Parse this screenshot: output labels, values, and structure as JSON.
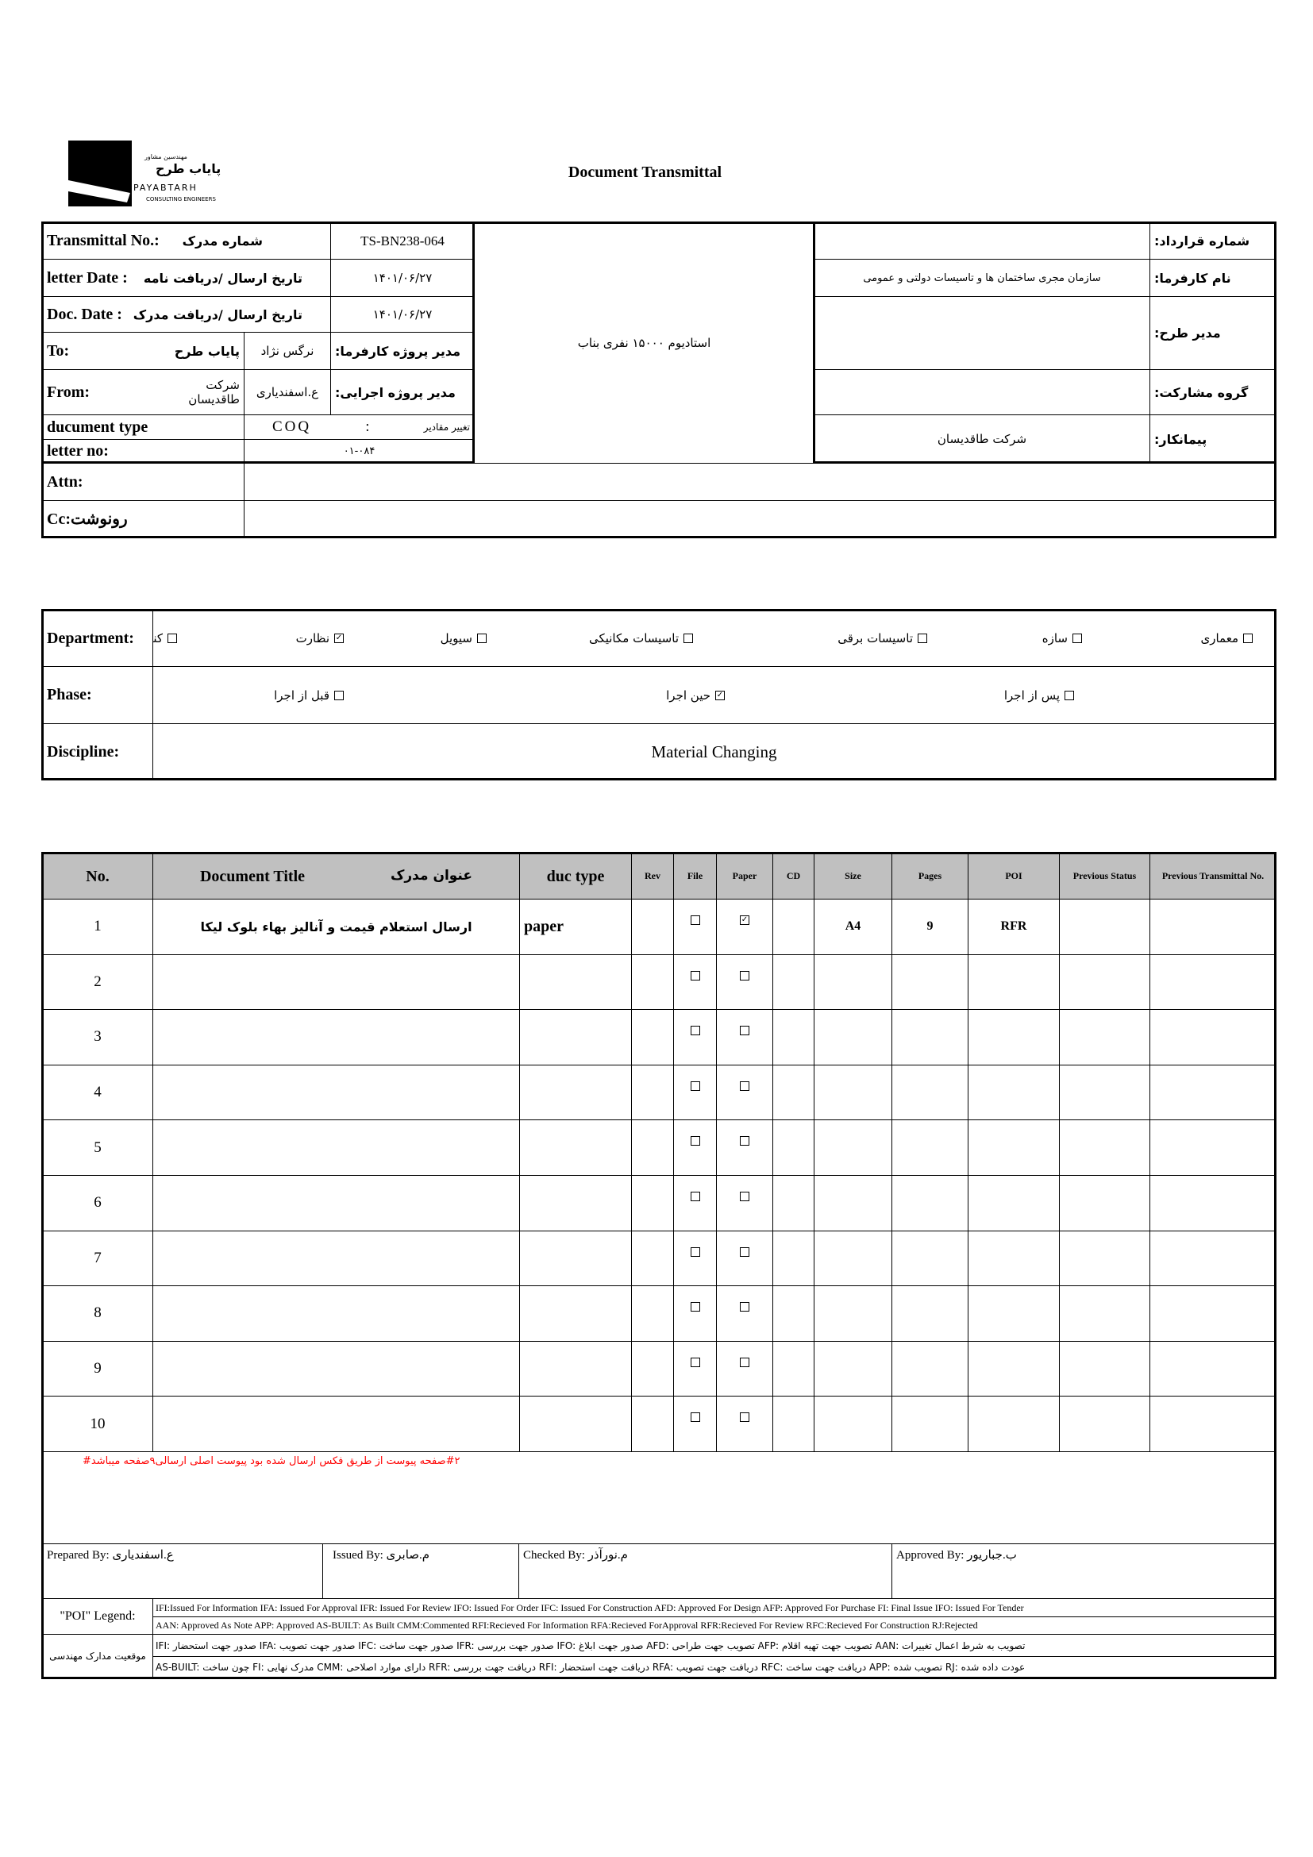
{
  "logo": {
    "company_fa_small": "مهندسین مشاور",
    "company_fa": "پایاب طرح",
    "company_en": "PAYABTARH",
    "subtitle": "CONSULTING ENGINEERS"
  },
  "title": "Document Transmittal",
  "header": {
    "transmittal_label": "Transmittal No.:",
    "transmittal_label_fa": "شماره مدرک",
    "transmittal_no": "TS-BN238-064",
    "letter_date_label": "letter Date  :",
    "letter_date_label_fa": "تاریخ ارسال /دریافت نامه",
    "letter_date": "۱۴۰۱/۰۶/۲۷",
    "doc_date_label": "Doc. Date :",
    "doc_date_label_fa": "تاریخ ارسال /دریافت مدرک",
    "doc_date": "۱۴۰۱/۰۶/۲۷",
    "to_label": "To:",
    "to_value": "پایاب طرح",
    "to_person": "نرگس نژاد",
    "to_role": "مدیر پروژه کارفرما:",
    "from_label": "From:",
    "from_value": "شرکت طاقدیسان",
    "from_person": "ع.اسفندیاری",
    "from_role": "مدیر پروژه اجرایی:",
    "doc_type_label": "ducument type",
    "doc_type_code": "COQ",
    "doc_type_colon": ":",
    "doc_type_fa": "تغییر مقادیر",
    "letter_no_label": "letter no:",
    "letter_no": "۰۱-۰۸۴",
    "project": "استادیوم ۱۵۰۰۰ نفری بناب",
    "contract_label": "شماره قرارداد:",
    "contract_value": "",
    "employer_label": "نام کارفرما:",
    "employer_value": "سازمان مجری ساختمان ها و تاسیسات دولتی و عمومی",
    "plan_manager_label": "مدیر طرح:",
    "plan_manager_value": "",
    "partner_label": "گروه مشارکت:",
    "partner_value": "",
    "contractor_label": "پیمانکار:",
    "contractor_value": "شرکت طاقدیسان",
    "attn_label": "Attn:",
    "attn_value": "",
    "cc_label": "Cc:رونوشت",
    "cc_value": ""
  },
  "department": {
    "label": "Department:",
    "options": [
      {
        "label": "کنترل پروژه",
        "checked": false
      },
      {
        "label": "نظارت",
        "checked": true
      },
      {
        "label": "سیویل",
        "checked": false
      },
      {
        "label": "تاسیسات مکانیکی",
        "checked": false
      },
      {
        "label": "تاسیسات برقی",
        "checked": false
      },
      {
        "label": "سازه",
        "checked": false
      },
      {
        "label": "معماری",
        "checked": false
      }
    ]
  },
  "phase": {
    "label": "Phase:",
    "options": [
      {
        "label": "قبل از اجرا",
        "checked": false
      },
      {
        "label": "حین اجرا",
        "checked": true
      },
      {
        "label": "پس از اجرا",
        "checked": false
      }
    ]
  },
  "discipline": {
    "label": "Discipline:",
    "value": "Material Changing"
  },
  "table": {
    "headers": {
      "no": "No.",
      "title": "Document Title",
      "title_fa": "عنوان مدرک",
      "duc_type": "duc type",
      "rev": "Rev",
      "file": "File",
      "paper": "Paper",
      "cd": "CD",
      "size": "Size",
      "pages": "Pages",
      "poi": "POI",
      "prev_status": "Previous Status",
      "prev_transmittal": "Previous Transmittal No."
    },
    "rows": [
      {
        "no": "1",
        "title": "ارسال استعلام قیمت و آنالیز بهاء بلوک لیکا",
        "duc_type": "paper",
        "rev": "",
        "file": false,
        "paper": true,
        "cd": "",
        "size": "A4",
        "pages": "9",
        "poi": "RFR",
        "prev_status": "",
        "prev_transmittal": ""
      },
      {
        "no": "2",
        "title": "",
        "duc_type": "",
        "rev": "",
        "file": false,
        "paper": false,
        "cd": "",
        "size": "",
        "pages": "",
        "poi": "",
        "prev_status": "",
        "prev_transmittal": ""
      },
      {
        "no": "3",
        "title": "",
        "duc_type": "",
        "rev": "",
        "file": false,
        "paper": false,
        "cd": "",
        "size": "",
        "pages": "",
        "poi": "",
        "prev_status": "",
        "prev_transmittal": ""
      },
      {
        "no": "4",
        "title": "",
        "duc_type": "",
        "rev": "",
        "file": false,
        "paper": false,
        "cd": "",
        "size": "",
        "pages": "",
        "poi": "",
        "prev_status": "",
        "prev_transmittal": ""
      },
      {
        "no": "5",
        "title": "",
        "duc_type": "",
        "rev": "",
        "file": false,
        "paper": false,
        "cd": "",
        "size": "",
        "pages": "",
        "poi": "",
        "prev_status": "",
        "prev_transmittal": ""
      },
      {
        "no": "6",
        "title": "",
        "duc_type": "",
        "rev": "",
        "file": false,
        "paper": false,
        "cd": "",
        "size": "",
        "pages": "",
        "poi": "",
        "prev_status": "",
        "prev_transmittal": ""
      },
      {
        "no": "7",
        "title": "",
        "duc_type": "",
        "rev": "",
        "file": false,
        "paper": false,
        "cd": "",
        "size": "",
        "pages": "",
        "poi": "",
        "prev_status": "",
        "prev_transmittal": ""
      },
      {
        "no": "8",
        "title": "",
        "duc_type": "",
        "rev": "",
        "file": false,
        "paper": false,
        "cd": "",
        "size": "",
        "pages": "",
        "poi": "",
        "prev_status": "",
        "prev_transmittal": ""
      },
      {
        "no": "9",
        "title": "",
        "duc_type": "",
        "rev": "",
        "file": false,
        "paper": false,
        "cd": "",
        "size": "",
        "pages": "",
        "poi": "",
        "prev_status": "",
        "prev_transmittal": ""
      },
      {
        "no": "10",
        "title": "",
        "duc_type": "",
        "rev": "",
        "file": false,
        "paper": false,
        "cd": "",
        "size": "",
        "pages": "",
        "poi": "",
        "prev_status": "",
        "prev_transmittal": ""
      }
    ]
  },
  "note": "#۲صفحه پیوست از طریق فکس ارسال شده بود پیوست اصلی ارسالی۹صفحه میباشد#",
  "note_color": "#ff0000",
  "signatures": {
    "prepared": "Prepared By: ع.اسفندیاری",
    "issued": "Issued By: م.صابری",
    "checked": "Checked By: م.نورآذر",
    "approved": "Approved By: ب.جباریور"
  },
  "legend": {
    "poi_label": "\"POI\" Legend:",
    "poi_line1": "IFI:Issued For Information  IFA: Issued For Approval  IFR: Issued For Review   IFO: Issued For Order  IFC: Issued For Construction AFD: Approved For Design AFP: Approved For Purchase  FI: Final Issue  IFO: Issued For Tender",
    "poi_line2": "AAN: Approved As Note  APP: Approved  AS-BUILT: As Built CMM:Commented  RFI:Recieved For Information   RFA:Recieved ForApproval   RFR:Recieved For Review  RFC:Recieved For Construction  RJ:Rejected",
    "status_label": "موقعیت مدارک مهندسی",
    "status_line1": "IFI: صدور جهت استحضار    IFA: صدور جهت تصویب    IFC: صدور جهت ساخت    IFR: صدور جهت بررسی    IFO: صدور جهت ابلاغ    AFD: تصویب جهت طراحی    AFP: تصویب جهت تهیه اقلام    AAN: تصویب به شرط اعمال تغییرات",
    "status_line2": "AS-BUILT: چون ساخت    FI: مدرک نهایی    CMM: دارای موارد اصلاحی    RFR: دریافت جهت بررسی    RFI: دریافت جهت استحضار    RFA: دریافت جهت تصویب    RFC: دریافت جهت ساخت    APP: تصویب شده    RJ: عودت داده شده"
  }
}
